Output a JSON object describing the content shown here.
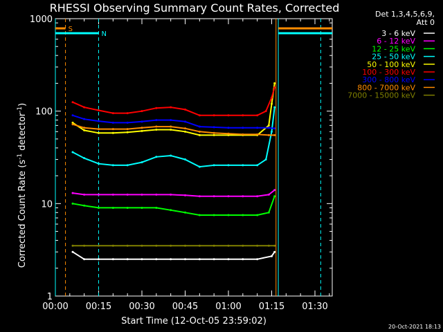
{
  "chart_data": {
    "type": "line",
    "title": "RHESSI Observing Summary Count Rates, Corrected",
    "xlabel": "Start Time (12-Oct-05 23:59:02)",
    "ylabel_main": "Corrected Count Rate (s",
    "ylabel_sup1": "-1",
    "ylabel_mid": " detector",
    "ylabel_sup2": "-1",
    "ylabel_end": ")",
    "y_scale": "log",
    "ylim": [
      1,
      1000
    ],
    "xlim_minutes": [
      0,
      96
    ],
    "x_tick_labels": [
      "00:00",
      "00:15",
      "00:30",
      "00:45",
      "01:00",
      "01:15",
      "01:30"
    ],
    "x_tick_minutes": [
      0,
      15,
      30,
      45,
      60,
      75,
      90
    ],
    "y_tick_labels": [
      "1",
      "10",
      "100",
      "1000"
    ],
    "y_tick_values": [
      1,
      10,
      100,
      1000
    ],
    "legend_header": [
      "Det 1,3,4,5,6,9,",
      "Att 0"
    ],
    "legend_position": "top-right, outside plot",
    "series": [
      {
        "name": "3 - 6 keV",
        "color": "#ffffff",
        "x": [
          6,
          10,
          15,
          20,
          25,
          30,
          35,
          40,
          45,
          50,
          55,
          60,
          65,
          70,
          75,
          76
        ],
        "y": [
          3,
          2.5,
          2.5,
          2.5,
          2.5,
          2.5,
          2.5,
          2.5,
          2.5,
          2.5,
          2.5,
          2.5,
          2.5,
          2.5,
          2.7,
          3
        ]
      },
      {
        "name": "6 - 12 keV",
        "color": "#ff00ff",
        "x": [
          6,
          10,
          15,
          20,
          25,
          30,
          35,
          40,
          45,
          50,
          55,
          60,
          65,
          70,
          74,
          76
        ],
        "y": [
          13,
          12.5,
          12.5,
          12.5,
          12.5,
          12.5,
          12.5,
          12.5,
          12.3,
          12,
          12,
          12,
          12,
          12,
          12.5,
          14
        ]
      },
      {
        "name": "12 - 25 keV",
        "color": "#00ff00",
        "x": [
          6,
          10,
          15,
          20,
          25,
          30,
          35,
          40,
          45,
          50,
          55,
          60,
          65,
          70,
          74,
          76
        ],
        "y": [
          10,
          9.5,
          9,
          9,
          9,
          9,
          9,
          8.5,
          8,
          7.5,
          7.5,
          7.5,
          7.5,
          7.5,
          8,
          12
        ]
      },
      {
        "name": "25 - 50 keV",
        "color": "#00ffff",
        "x": [
          6,
          10,
          15,
          20,
          25,
          30,
          35,
          40,
          45,
          50,
          55,
          60,
          65,
          70,
          73,
          75,
          76
        ],
        "y": [
          36,
          31,
          27,
          26,
          26,
          28,
          32,
          33,
          30,
          25,
          26,
          26,
          26,
          26,
          30,
          60,
          110
        ]
      },
      {
        "name": "50 - 100 keV",
        "color": "#ffff00",
        "x": [
          6,
          10,
          15,
          20,
          25,
          30,
          35,
          40,
          45,
          50,
          55,
          60,
          65,
          70,
          74,
          75,
          76
        ],
        "y": [
          75,
          62,
          58,
          58,
          59,
          61,
          63,
          63,
          60,
          55,
          55,
          55,
          55,
          55,
          70,
          120,
          200
        ]
      },
      {
        "name": "100 - 300 keV",
        "color": "#ff0000",
        "x": [
          6,
          10,
          15,
          20,
          25,
          30,
          35,
          40,
          45,
          50,
          55,
          60,
          65,
          70,
          73,
          75,
          76
        ],
        "y": [
          125,
          110,
          102,
          95,
          95,
          100,
          108,
          110,
          104,
          90,
          90,
          90,
          90,
          90,
          100,
          140,
          180
        ]
      },
      {
        "name": "300 - 800 keV",
        "color": "#0000ff",
        "x": [
          6,
          10,
          15,
          20,
          25,
          30,
          35,
          40,
          45,
          50,
          55,
          60,
          65,
          70,
          74,
          76
        ],
        "y": [
          90,
          82,
          78,
          75,
          75,
          77,
          80,
          80,
          77,
          68,
          67,
          66,
          66,
          66,
          66,
          65
        ]
      },
      {
        "name": "800 - 7000 keV",
        "color": "#ff8c00",
        "x": [
          6,
          10,
          15,
          20,
          25,
          30,
          35,
          40,
          45,
          50,
          55,
          60,
          65,
          70,
          74,
          76
        ],
        "y": [
          72,
          66,
          64,
          64,
          64,
          66,
          68,
          68,
          65,
          60,
          58,
          57,
          56,
          56,
          55,
          55
        ]
      },
      {
        "name": "7000 - 15000 keV",
        "color": "#808000",
        "x": [
          6,
          10,
          15,
          20,
          25,
          30,
          35,
          40,
          45,
          50,
          55,
          60,
          65,
          70,
          74,
          76
        ],
        "y": [
          3.5,
          3.5,
          3.5,
          3.5,
          3.5,
          3.5,
          3.5,
          3.5,
          3.5,
          3.5,
          3.5,
          3.5,
          3.5,
          3.5,
          3.5,
          3.5
        ]
      }
    ],
    "saa_flag_label": "S",
    "night_flag_label": "N",
    "footer_timestamp": "20-Oct-2021 18:13"
  }
}
